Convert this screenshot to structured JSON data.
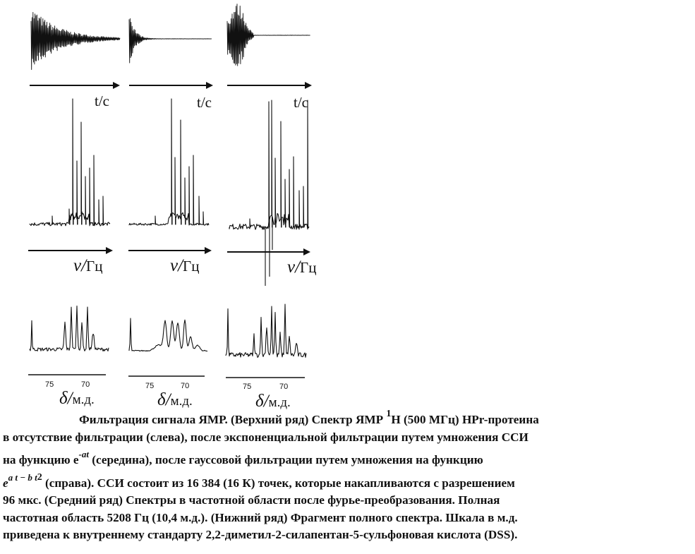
{
  "figure": {
    "panels": [
      {
        "time_label": "t/c",
        "freq_label": "Гц",
        "ppm_label": "м.д.",
        "tick_left": "75",
        "tick_right": "70"
      },
      {
        "time_label": "t/c",
        "freq_label": "Гц",
        "ppm_label": "м.д.",
        "tick_left": "75",
        "tick_right": "70"
      },
      {
        "time_label": "t/c",
        "freq_label": "Гц",
        "ppm_label": "м.д.",
        "tick_left": "75",
        "tick_right": "70"
      }
    ],
    "nu_symbol": "ν/",
    "delta_symbol": "δ/"
  },
  "caption": {
    "l1a": "Фильтрация сигнала ЯМР. (Верхний ряд) Спектр ЯМР ",
    "l1sup": "1",
    "l1b": "Н (500 МГц) НРr-протеина",
    "l2": "в отсутствие фильтрации (слева), после экспоненциальной фильтрации путем умножения ССИ",
    "l3a": "на функцию е",
    "l3sup": "-at",
    "l3b": " (середина), после гауссовой фильтрации путем умножения на функцию",
    "l4a": "e",
    "l4sup": "a t − b t",
    "l4sup2": "2",
    "l4b": " (справа). ССИ состоит из 16 384 (16 К) точек, которые накапливаются с разрешением",
    "l5": "96 мкс. (Средний ряд) Спектры в частотной области после фурье-преобразования. Полная",
    "l6": "частотная область 5208 Гц (10,4 м.д.). (Нижний ряд) Фрагмент полного спектра. Шкала в м.д.",
    "l7": "приведена к внутреннему стандарту 2,2-диметил-2-силапентан-5-сульфоновая кислота (DSS)."
  }
}
